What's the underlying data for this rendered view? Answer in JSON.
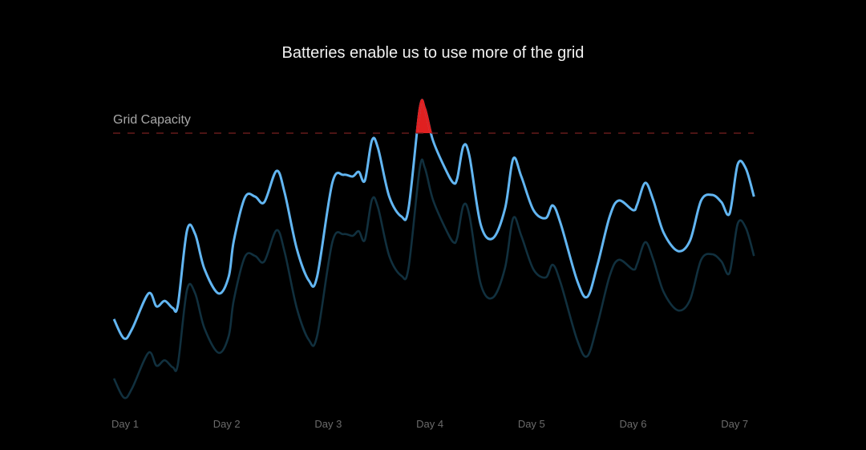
{
  "chart_data": {
    "type": "line",
    "title": "Batteries enable us to use more of the grid",
    "xlabel": "",
    "ylabel": "",
    "x_ticks": [
      "Day 1",
      "Day 2",
      "Day 3",
      "Day 4",
      "Day 5",
      "Day 6",
      "Day 7"
    ],
    "grid": false,
    "reference_line": {
      "label": "Grid Capacity",
      "value": 100,
      "style": "dashed",
      "color": "#7a2020"
    },
    "over_capacity_color": "#e02020",
    "ylim": [
      0,
      110
    ],
    "x": [
      0.89,
      0.99,
      1.07,
      1.23,
      1.31,
      1.39,
      1.47,
      1.52,
      1.61,
      1.69,
      1.78,
      1.92,
      2.02,
      2.07,
      2.18,
      2.28,
      2.37,
      2.49,
      2.57,
      2.69,
      2.81,
      2.89,
      3.04,
      3.15,
      3.24,
      3.3,
      3.36,
      3.43,
      3.49,
      3.6,
      3.72,
      3.79,
      3.9,
      3.95,
      4.03,
      4.15,
      4.23,
      4.27,
      4.33,
      4.39,
      4.5,
      4.62,
      4.74,
      4.82,
      4.9,
      5.02,
      5.14,
      5.21,
      5.29,
      5.45,
      5.55,
      5.65,
      5.77,
      5.86,
      6.0,
      6.04,
      6.12,
      6.2,
      6.3,
      6.44,
      6.56,
      6.67,
      6.78,
      6.87,
      6.95,
      7.03,
      7.11,
      7.19
    ],
    "series": [
      {
        "color": "#62b6f2",
        "values": [
          32.6,
          25.6,
          29.1,
          41.9,
          37.2,
          39.2,
          36.6,
          37.8,
          64.8,
          63.4,
          50.9,
          41.9,
          48.0,
          61.0,
          76.7,
          77.0,
          75.0,
          86.3,
          78.5,
          58.1,
          46.5,
          48.0,
          82.0,
          84.9,
          84.3,
          86.0,
          82.8,
          97.4,
          94.5,
          77.0,
          69.8,
          72.7,
          108.7,
          109.0,
          97.4,
          87.2,
          82.0,
          83.7,
          95.3,
          91.6,
          66.9,
          61.9,
          72.7,
          90.7,
          84.3,
          72.1,
          69.2,
          73.8,
          66.9,
          46.5,
          40.7,
          52.3,
          69.8,
          75.6,
          72.1,
          74.1,
          82.0,
          75.6,
          64.0,
          57.3,
          61.0,
          75.6,
          77.6,
          75.0,
          70.9,
          88.7,
          87.2,
          77.0
        ]
      },
      {
        "color": "#11303e",
        "values": [
          11.1,
          4.1,
          7.6,
          20.4,
          15.7,
          17.7,
          15.1,
          16.3,
          43.3,
          41.9,
          29.4,
          20.4,
          26.5,
          39.5,
          55.2,
          55.5,
          53.5,
          64.8,
          57.0,
          36.6,
          25.0,
          26.5,
          60.5,
          63.4,
          62.8,
          64.5,
          61.3,
          75.9,
          73.0,
          55.5,
          48.3,
          51.2,
          87.2,
          87.5,
          75.9,
          65.7,
          60.5,
          62.2,
          73.8,
          70.1,
          45.4,
          40.4,
          51.2,
          69.2,
          62.8,
          50.6,
          47.7,
          52.3,
          45.4,
          25.0,
          19.2,
          30.8,
          48.3,
          54.1,
          50.6,
          52.6,
          60.5,
          54.1,
          42.5,
          35.8,
          39.5,
          54.1,
          56.1,
          53.5,
          49.4,
          67.2,
          65.7,
          55.5
        ]
      }
    ]
  }
}
